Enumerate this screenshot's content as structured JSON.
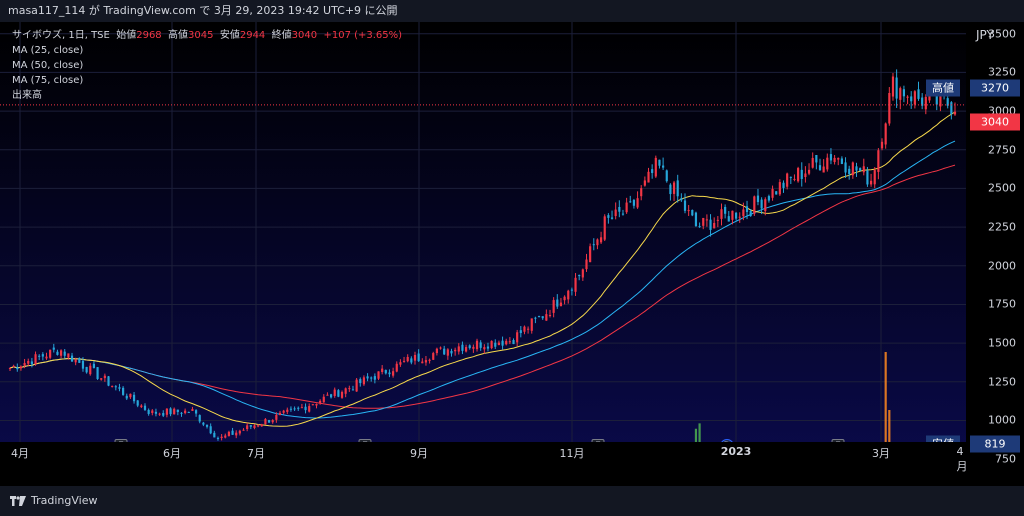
{
  "topbar": {
    "text": "masa117_114 が TradingView.com で 3月 29, 2023 19:42 UTC+9 に公開"
  },
  "legend": {
    "symbol": "サイボウズ, 1日, TSE",
    "open_label": "始値",
    "open": "2968",
    "high_label": "高値",
    "high": "3045",
    "low_label": "安値",
    "low": "2944",
    "close_label": "終値",
    "close": "3040",
    "change": "+107 (+3.65%)",
    "ma25": "MA (25, close)",
    "ma50": "MA (50, close)",
    "ma75": "MA (75, close)",
    "volume": "出来高"
  },
  "yaxis": {
    "currency": "JPY",
    "ticks": [
      "3500",
      "3250",
      "3000",
      "2750",
      "2500",
      "2250",
      "2000",
      "1750",
      "1500",
      "1250",
      "1000",
      "750"
    ],
    "high_tag_label": "高値",
    "high_tag_value": "3270",
    "last_price": "3040",
    "low_tag_label": "安値",
    "low_tag_value": "819"
  },
  "xaxis": {
    "ticks": [
      "4月",
      "6月",
      "7月",
      "9月",
      "11月",
      "2023",
      "3月",
      "4月"
    ]
  },
  "events": [
    "E",
    "E",
    "E",
    "D",
    "E"
  ],
  "footer": {
    "brand": "TradingView"
  },
  "chart_data": {
    "type": "candlestick",
    "title": "サイボウズ, 1日, TSE",
    "ylim": [
      750,
      3550
    ],
    "x_ticks": [
      "4月",
      "6月",
      "7月",
      "9月",
      "11月",
      "2023",
      "3月",
      "4月"
    ],
    "keypoints": {
      "dates": [
        "2022-04-01",
        "2022-04-20",
        "2022-05-10",
        "2022-05-25",
        "2022-06-10",
        "2022-06-20",
        "2022-07-05",
        "2022-07-20",
        "2022-08-10",
        "2022-09-01",
        "2022-09-20",
        "2022-10-10",
        "2022-10-25",
        "2022-11-05",
        "2022-11-15",
        "2022-11-25",
        "2022-12-05",
        "2022-12-20",
        "2023-01-10",
        "2023-01-25",
        "2023-02-10",
        "2023-02-25",
        "2023-03-05",
        "2023-03-15",
        "2023-03-29"
      ],
      "close": [
        1340,
        1460,
        1230,
        1050,
        1060,
        880,
        980,
        1070,
        1220,
        1390,
        1480,
        1520,
        1720,
        1940,
        2280,
        2370,
        2650,
        2250,
        2380,
        2560,
        2720,
        2560,
        3170,
        3080,
        3040
      ]
    },
    "series": [
      {
        "name": "MA (25, close)",
        "color": "#f7d94c"
      },
      {
        "name": "MA (50, close)",
        "color": "#29b6f6"
      },
      {
        "name": "MA (75, close)",
        "color": "#f23645"
      }
    ],
    "colors": {
      "up": "#f23645",
      "down": "#26a6d9",
      "volume_up": "#ff8a1f",
      "volume_down": "#4caf50",
      "background_top": "#000000",
      "background_bottom": "#0a0a4a"
    }
  }
}
